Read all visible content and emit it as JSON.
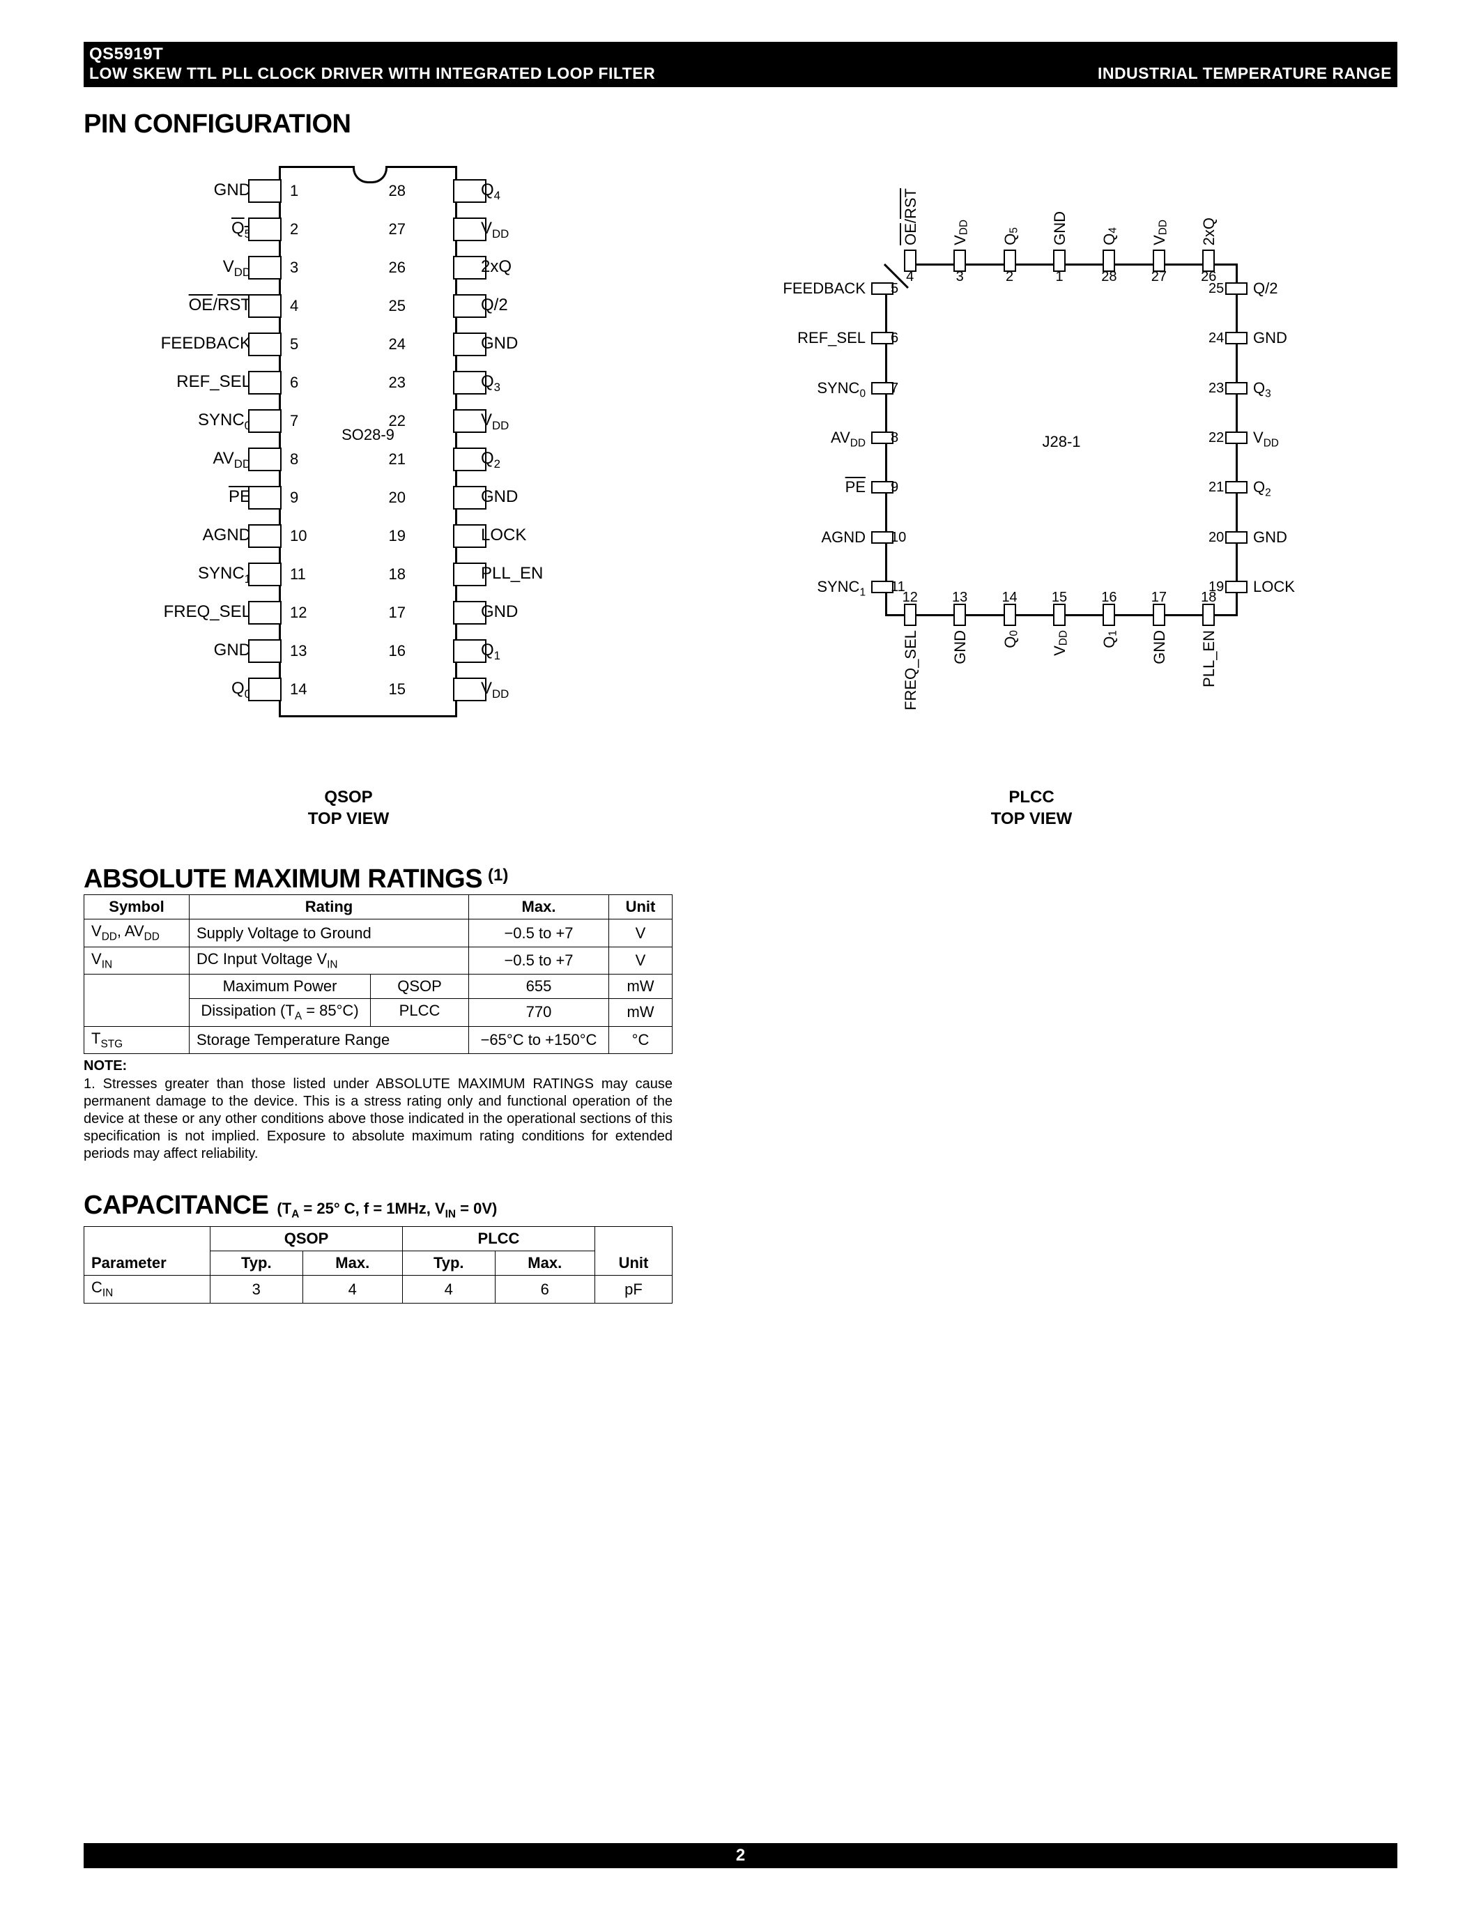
{
  "header": {
    "part": "QS5919T",
    "desc": "LOW SKEW TTL PLL CLOCK DRIVER WITH INTEGRATED LOOP FILTER",
    "right": "INDUSTRIAL TEMPERATURE RANGE"
  },
  "sections": {
    "pinconfig": "PIN CONFIGURATION",
    "amr": "ABSOLUTE MAXIMUM RATINGS",
    "amr_sup": "(1)",
    "cap": "CAPACITANCE",
    "cap_cond": "(TA = 25° C, f = 1MHz, VIN = 0V)"
  },
  "qsop": {
    "chip": "SO28-9",
    "caption1": "QSOP",
    "caption2": "TOP VIEW",
    "left": [
      {
        "n": "1",
        "l": "GND"
      },
      {
        "n": "2",
        "l": "Q5",
        "ob": true,
        "sub": "5"
      },
      {
        "n": "3",
        "l": "VDD",
        "sub": "DD"
      },
      {
        "n": "4",
        "l": "OE/RST",
        "ob": "RST"
      },
      {
        "n": "5",
        "l": "FEEDBACK"
      },
      {
        "n": "6",
        "l": "REF_SEL"
      },
      {
        "n": "7",
        "l": "SYNC0",
        "sub": "0"
      },
      {
        "n": "8",
        "l": "AVDD",
        "sub": "DD"
      },
      {
        "n": "9",
        "l": "PE",
        "ob": true
      },
      {
        "n": "10",
        "l": "AGND"
      },
      {
        "n": "11",
        "l": "SYNC1",
        "sub": "1"
      },
      {
        "n": "12",
        "l": "FREQ_SEL"
      },
      {
        "n": "13",
        "l": "GND"
      },
      {
        "n": "14",
        "l": "Q0",
        "sub": "0"
      }
    ],
    "right": [
      {
        "n": "28",
        "l": "Q4",
        "sub": "4"
      },
      {
        "n": "27",
        "l": "VDD",
        "sub": "DD"
      },
      {
        "n": "26",
        "l": "2xQ"
      },
      {
        "n": "25",
        "l": "Q/2"
      },
      {
        "n": "24",
        "l": "GND"
      },
      {
        "n": "23",
        "l": "Q3",
        "sub": "3"
      },
      {
        "n": "22",
        "l": "VDD",
        "sub": "DD"
      },
      {
        "n": "21",
        "l": "Q2",
        "sub": "2"
      },
      {
        "n": "20",
        "l": "GND"
      },
      {
        "n": "19",
        "l": "LOCK"
      },
      {
        "n": "18",
        "l": "PLL_EN"
      },
      {
        "n": "17",
        "l": "GND"
      },
      {
        "n": "16",
        "l": "Q1",
        "sub": "1"
      },
      {
        "n": "15",
        "l": "VDD",
        "sub": "DD"
      }
    ]
  },
  "plcc": {
    "chip": "J28-1",
    "caption1": "PLCC",
    "caption2": "TOP VIEW",
    "top": [
      {
        "n": "4",
        "l": "OE/RST"
      },
      {
        "n": "3",
        "l": "VDD"
      },
      {
        "n": "2",
        "l": "Q5"
      },
      {
        "n": "1",
        "l": "GND"
      },
      {
        "n": "28",
        "l": "Q4"
      },
      {
        "n": "27",
        "l": "VDD"
      },
      {
        "n": "26",
        "l": "2xQ"
      }
    ],
    "left": [
      {
        "n": "5",
        "l": "FEEDBACK"
      },
      {
        "n": "6",
        "l": "REF_SEL"
      },
      {
        "n": "7",
        "l": "SYNC0"
      },
      {
        "n": "8",
        "l": "AVDD"
      },
      {
        "n": "9",
        "l": "PE"
      },
      {
        "n": "10",
        "l": "AGND"
      },
      {
        "n": "11",
        "l": "SYNC1"
      }
    ],
    "right": [
      {
        "n": "25",
        "l": "Q/2"
      },
      {
        "n": "24",
        "l": "GND"
      },
      {
        "n": "23",
        "l": "Q3"
      },
      {
        "n": "22",
        "l": "VDD"
      },
      {
        "n": "21",
        "l": "Q2"
      },
      {
        "n": "20",
        "l": "GND"
      },
      {
        "n": "19",
        "l": "LOCK"
      }
    ],
    "bottom": [
      {
        "n": "12",
        "l": "FREQ_SEL"
      },
      {
        "n": "13",
        "l": "GND"
      },
      {
        "n": "14",
        "l": "Q0"
      },
      {
        "n": "15",
        "l": "VDD"
      },
      {
        "n": "16",
        "l": "Q1"
      },
      {
        "n": "17",
        "l": "GND"
      },
      {
        "n": "18",
        "l": "PLL_EN"
      }
    ]
  },
  "amr_table": {
    "headers": [
      "Symbol",
      "Rating",
      "Max.",
      "Unit"
    ],
    "rows": [
      [
        "VDD, AVDD",
        "Supply Voltage to Ground",
        "−0.5 to +7",
        "V"
      ],
      [
        "VIN",
        "DC Input Voltage VIN",
        "−0.5 to +7",
        "V"
      ]
    ],
    "power": {
      "label": "Maximum Power",
      "label2": "Dissipation (TA = 85°C)",
      "r1": [
        "QSOP",
        "655",
        "mW"
      ],
      "r2": [
        "PLCC",
        "770",
        "mW"
      ]
    },
    "row_stg": [
      "TSTG",
      "Storage Temperature Range",
      "−65°C to +150°C",
      "°C"
    ],
    "note_label": "NOTE:",
    "note": "1. Stresses greater than those listed under ABSOLUTE MAXIMUM RATINGS may cause permanent damage to the device. This is a stress rating only and functional operation of the device at these or any other conditions above those indicated in the operational sections of this specification is not implied. Exposure to absolute maximum rating conditions for extended periods may affect reliability."
  },
  "cap_table": {
    "h1": [
      "QSOP",
      "PLCC"
    ],
    "h2": [
      "Parameter",
      "Typ.",
      "Max.",
      "Typ.",
      "Max.",
      "Unit"
    ],
    "row": [
      "CIN",
      "3",
      "4",
      "4",
      "6",
      "pF"
    ]
  },
  "footer": "2"
}
